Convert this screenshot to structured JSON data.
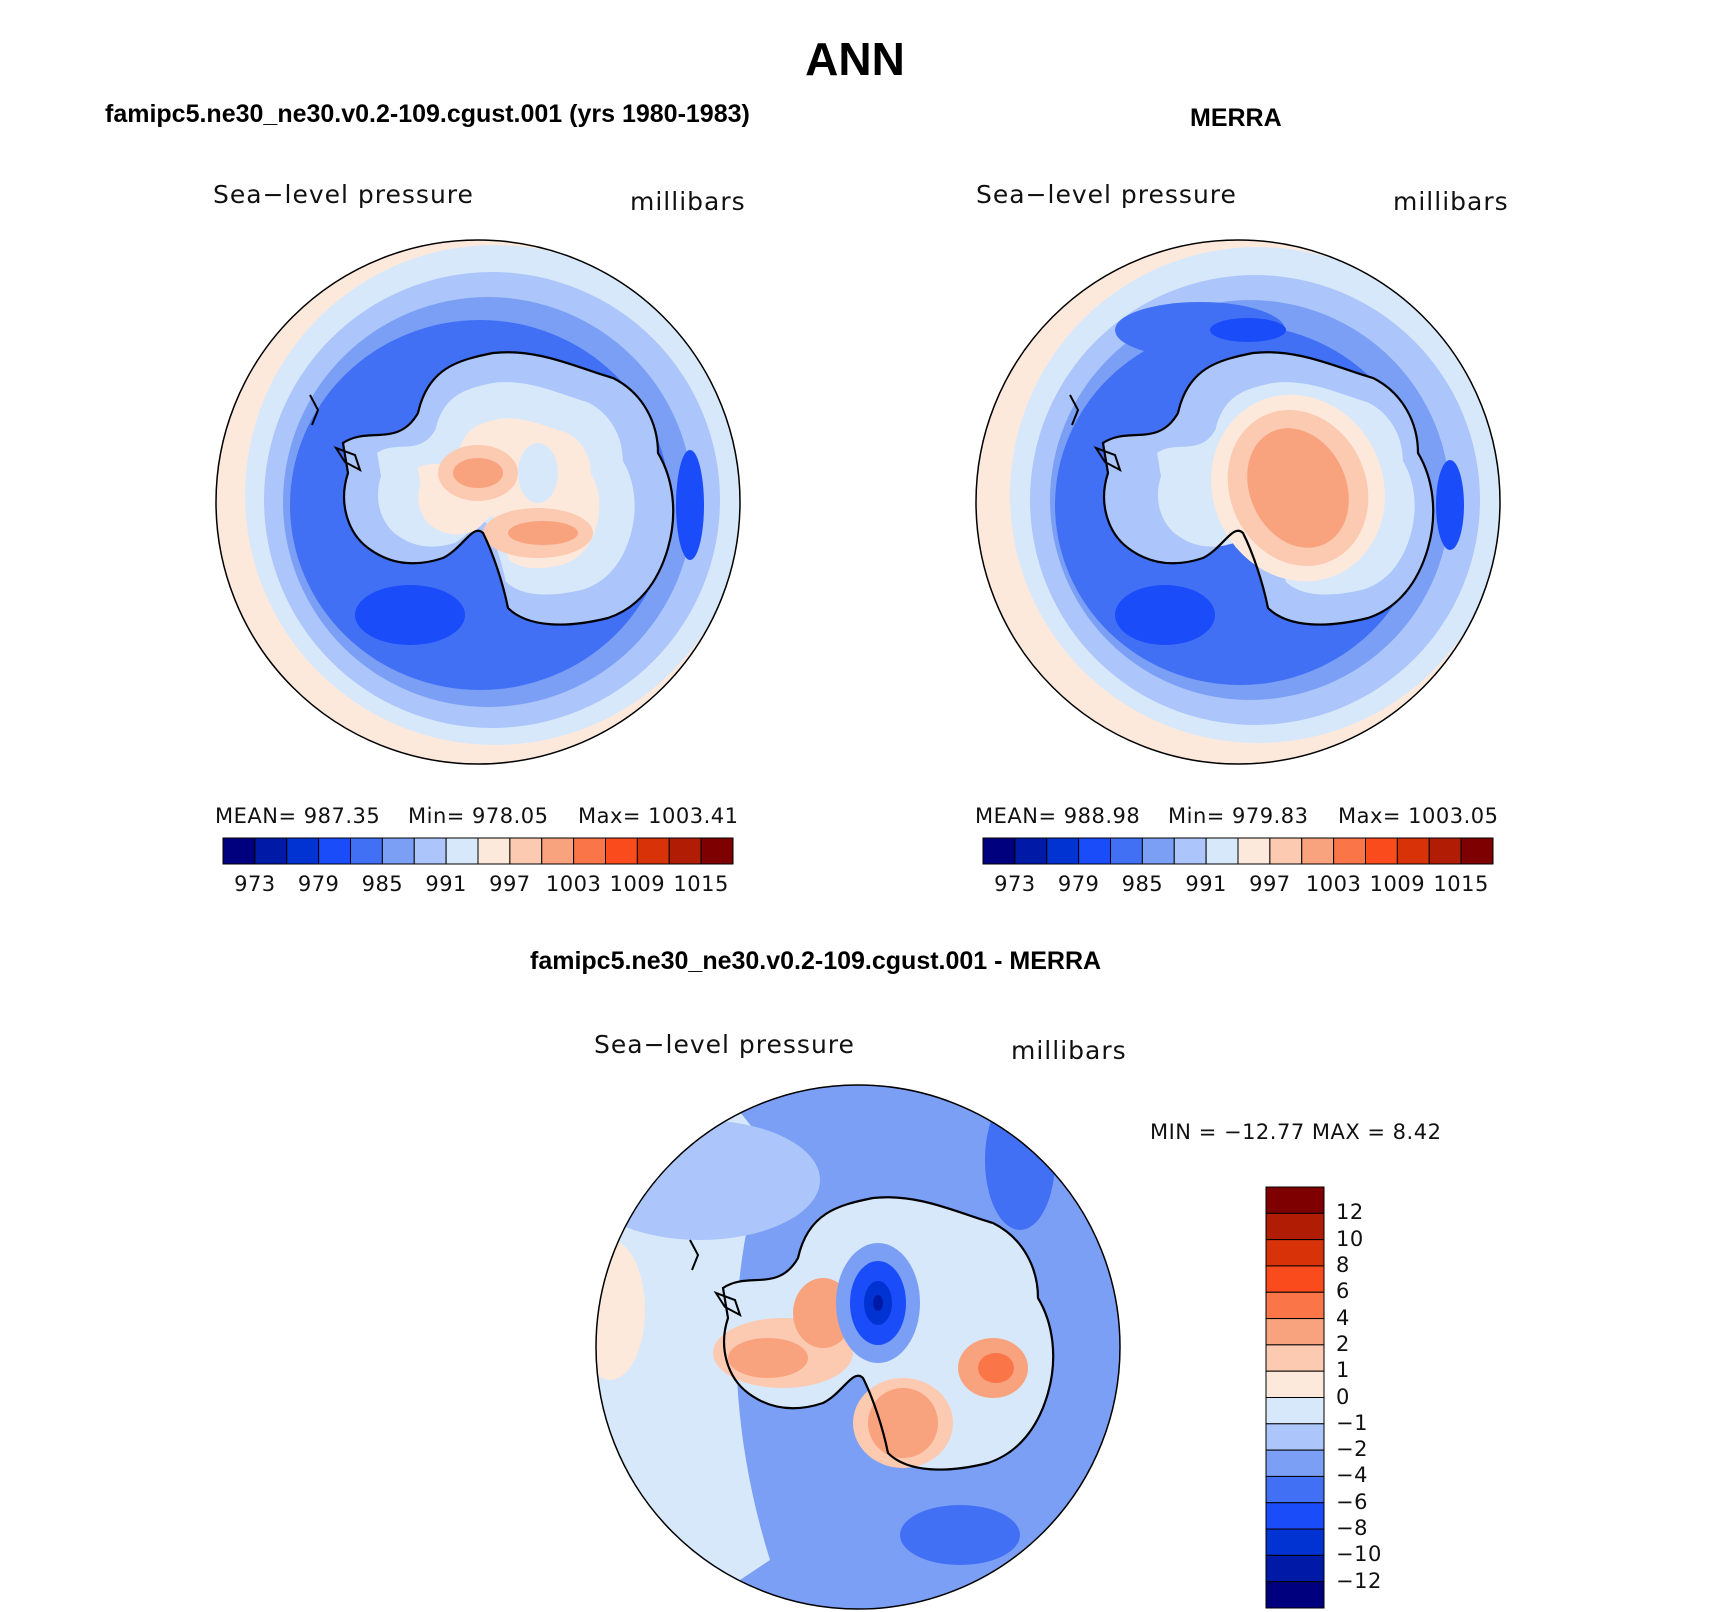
{
  "title": "ANN",
  "colors": {
    "abs_scale": [
      "#00007f",
      "#001aa8",
      "#0033d2",
      "#1a4cfa",
      "#4170f4",
      "#7b9ff5",
      "#acc6fb",
      "#d8e8fb",
      "#fde9dc",
      "#fcc9b1",
      "#f9a27e",
      "#fa7547",
      "#f94b1c",
      "#d83208",
      "#b01c04",
      "#7f0000"
    ],
    "diff_scale": [
      "#00007f",
      "#001aa8",
      "#0033d2",
      "#1a4cfa",
      "#4170f4",
      "#7b9ff5",
      "#acc6fb",
      "#d8e8fb",
      "#fde9dc",
      "#fcc9b1",
      "#f9a27e",
      "#fa7547",
      "#f94b1c",
      "#d83208",
      "#b01c04",
      "#7f0000"
    ]
  },
  "panels": {
    "model": {
      "title": "famipc5.ne30_ne30.v0.2-109.cgust.001 (yrs 1980-1983)",
      "left_label": "Sea−level pressure",
      "right_label": "millibars",
      "stats": {
        "mean": "MEAN=  987.35",
        "min": "Min=  978.05",
        "max": "Max=  1003.41"
      },
      "colorbar_labels": [
        "973",
        "979",
        "985",
        "991",
        "997",
        "1003",
        "1009",
        "1015"
      ]
    },
    "obs": {
      "title": "MERRA",
      "left_label": "Sea−level pressure",
      "right_label": "millibars",
      "stats": {
        "mean": "MEAN=  988.98",
        "min": "Min=  979.83",
        "max": "Max=  1003.05"
      },
      "colorbar_labels": [
        "973",
        "979",
        "985",
        "991",
        "997",
        "1003",
        "1009",
        "1015"
      ]
    },
    "diff": {
      "title": "famipc5.ne30_ne30.v0.2-109.cgust.001 - MERRA",
      "left_label": "Sea−level pressure",
      "right_label": "millibars",
      "minmax": "MIN = −12.77  MAX =     8.42",
      "colorbar_labels": [
        "12",
        "10",
        "8",
        "6",
        "4",
        "2",
        "1",
        "0",
        "−1",
        "−2",
        "−4",
        "−6",
        "−8",
        "−10",
        "−12"
      ]
    }
  }
}
